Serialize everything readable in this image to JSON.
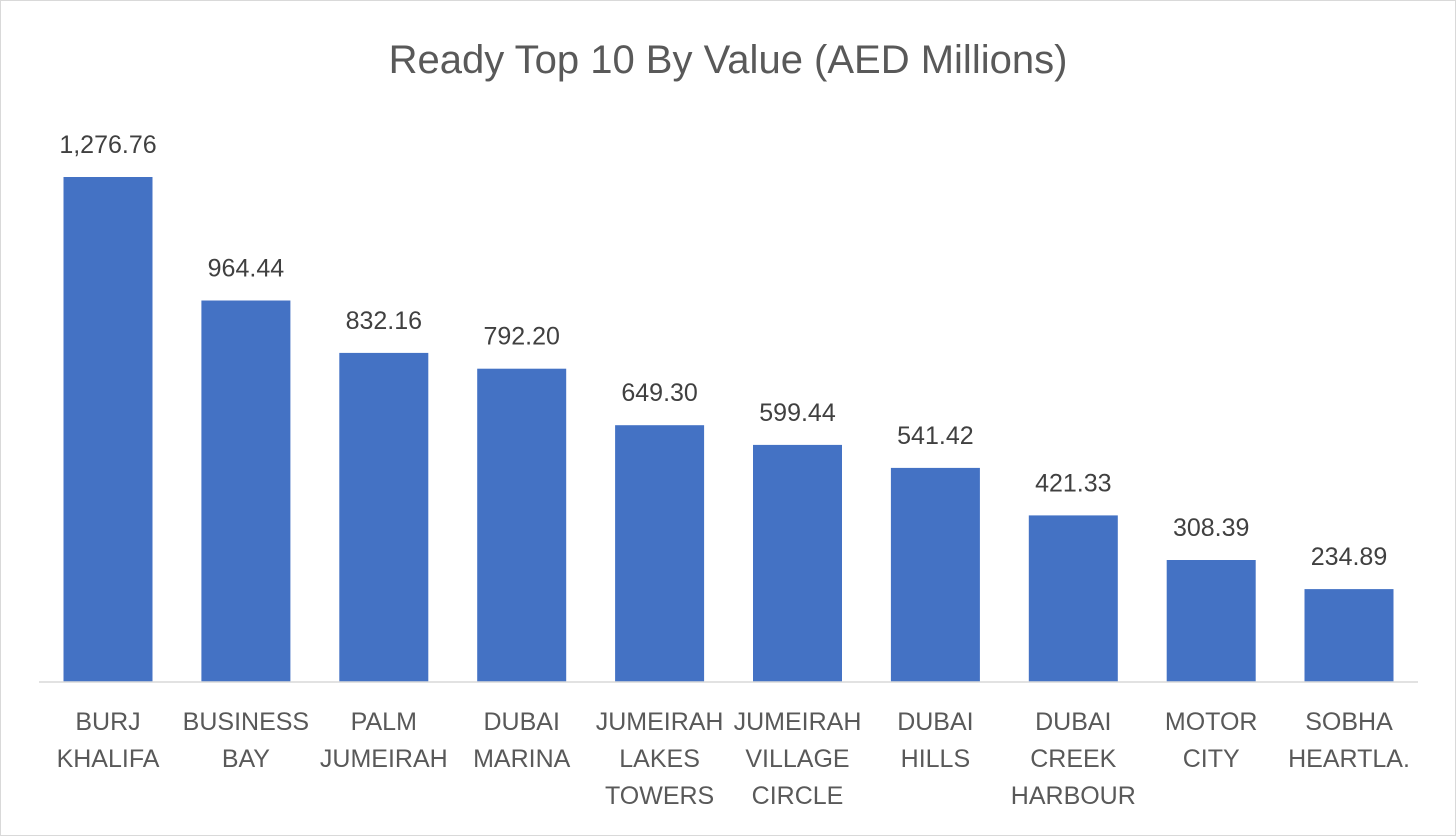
{
  "chart_data": {
    "type": "bar",
    "title": "Ready Top 10 By Value (AED Millions)",
    "xlabel": "",
    "ylabel": "",
    "categories": [
      "BURJ KHALIFA",
      "BUSINESS BAY",
      "PALM JUMEIRAH",
      "DUBAI MARINA",
      "JUMEIRAH LAKES TOWERS",
      "JUMEIRAH VILLAGE CIRCLE",
      "DUBAI HILLS",
      "DUBAI CREEK HARBOUR",
      "MOTOR CITY",
      "SOBHA HEARTLA."
    ],
    "category_lines": [
      [
        "BURJ",
        "KHALIFA"
      ],
      [
        "BUSINESS",
        "BAY"
      ],
      [
        "PALM",
        "JUMEIRAH"
      ],
      [
        "DUBAI",
        "MARINA"
      ],
      [
        "JUMEIRAH",
        "LAKES",
        "TOWERS"
      ],
      [
        "JUMEIRAH",
        "VILLAGE",
        "CIRCLE"
      ],
      [
        "DUBAI",
        "HILLS"
      ],
      [
        "DUBAI",
        "CREEK",
        "HARBOUR"
      ],
      [
        "MOTOR",
        "CITY"
      ],
      [
        "SOBHA",
        "HEARTLA."
      ]
    ],
    "values": [
      1276.76,
      964.44,
      832.16,
      792.2,
      649.3,
      599.44,
      541.42,
      421.33,
      308.39,
      234.89
    ],
    "data_labels": [
      "1,276.76",
      "964.44",
      "832.16",
      "792.20",
      "649.30",
      "599.44",
      "541.42",
      "421.33",
      "308.39",
      "234.89"
    ],
    "ylim": [
      0,
      1400
    ],
    "grid": false,
    "legend": "none",
    "bar_color": "#4472c4",
    "axis_color": "#d9d9d9"
  }
}
